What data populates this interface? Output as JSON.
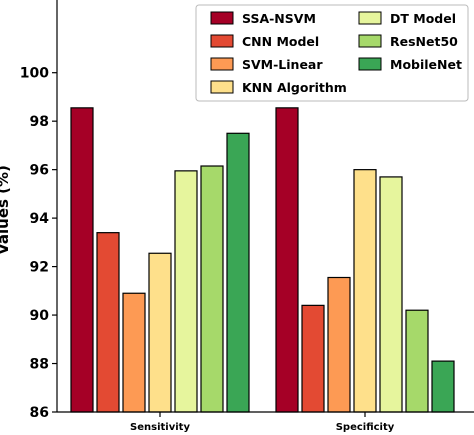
{
  "chart_data": {
    "type": "bar",
    "title": "",
    "xlabel": "",
    "ylabel": "Values (%)",
    "categories": [
      "Sensitivity",
      "Specificity"
    ],
    "ylim": [
      86,
      103
    ],
    "yticks": [
      86,
      88,
      90,
      92,
      94,
      96,
      98,
      100
    ],
    "grid": false,
    "legend_position": "top-right",
    "series": [
      {
        "name": "SSA-NSVM",
        "color": "#a50026",
        "values": [
          98.55,
          98.55
        ]
      },
      {
        "name": "CNN Model",
        "color": "#e34a33",
        "values": [
          93.4,
          90.4
        ]
      },
      {
        "name": "SVM-Linear",
        "color": "#fd9a54",
        "values": [
          90.9,
          91.55
        ]
      },
      {
        "name": "KNN Algorithm",
        "color": "#fee08b",
        "values": [
          92.55,
          96.0
        ]
      },
      {
        "name": "DT Model",
        "color": "#e6f59d",
        "values": [
          95.95,
          95.7
        ]
      },
      {
        "name": "ResNet50",
        "color": "#a6d96a",
        "values": [
          96.15,
          90.2
        ]
      },
      {
        "name": "MobileNet",
        "color": "#3aa655",
        "values": [
          97.5,
          88.1
        ]
      }
    ]
  }
}
